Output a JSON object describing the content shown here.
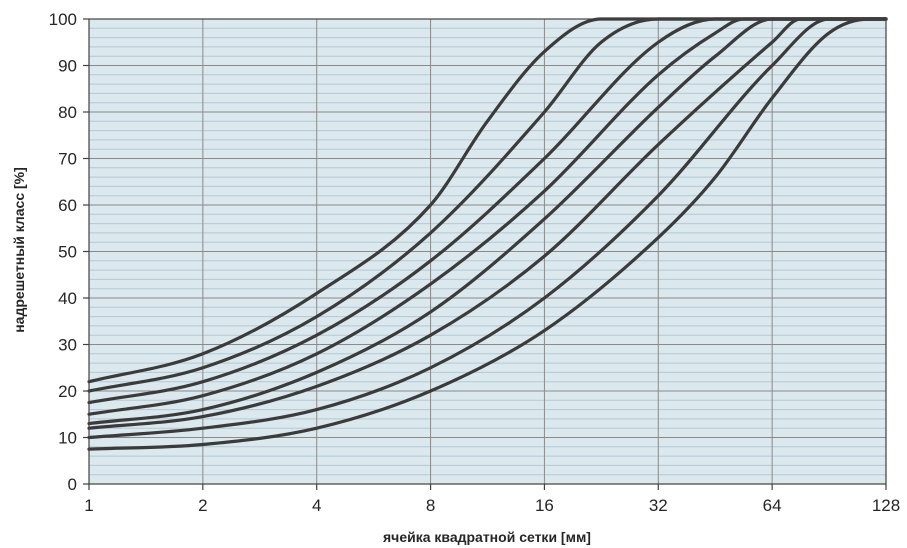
{
  "chart_data": {
    "type": "line",
    "title": "",
    "xlabel": "ячейка квадратной сетки [мм]",
    "ylabel": "надрешетный класс [%]",
    "x_scale": "log2",
    "xlim": [
      1,
      128
    ],
    "ylim": [
      0,
      100
    ],
    "x_ticks": [
      1,
      2,
      4,
      8,
      16,
      32,
      64,
      128
    ],
    "x_tick_labels": [
      "1",
      "2",
      "4",
      "8",
      "16",
      "32",
      "64",
      "128"
    ],
    "y_ticks": [
      0,
      10,
      20,
      30,
      40,
      50,
      60,
      70,
      80,
      90,
      100
    ],
    "y_tick_labels": [
      "0",
      "10",
      "20",
      "30",
      "40",
      "50",
      "60",
      "70",
      "80",
      "90",
      "100"
    ],
    "grid": true,
    "legend": "none",
    "colors": {
      "plot_background": "#dbe8ee",
      "minor_grid": "#b5c9d2",
      "major_grid": "#8a8a8a",
      "curve": "#3b3b3b",
      "axis": "#404040"
    },
    "series": [
      {
        "points": [
          [
            1,
            22
          ],
          [
            2,
            28
          ],
          [
            4,
            41
          ],
          [
            8,
            60
          ],
          [
            11.3,
            78
          ],
          [
            16,
            93
          ],
          [
            22.6,
            100
          ],
          [
            128,
            100
          ]
        ]
      },
      {
        "points": [
          [
            1,
            20
          ],
          [
            2,
            25
          ],
          [
            4,
            36
          ],
          [
            8,
            54
          ],
          [
            16,
            80
          ],
          [
            22.6,
            95
          ],
          [
            32,
            100
          ],
          [
            128,
            100
          ]
        ]
      },
      {
        "points": [
          [
            1,
            17.5
          ],
          [
            2,
            22
          ],
          [
            4,
            32
          ],
          [
            8,
            48
          ],
          [
            16,
            70
          ],
          [
            32,
            95
          ],
          [
            45.3,
            100
          ],
          [
            128,
            100
          ]
        ]
      },
      {
        "points": [
          [
            1,
            15
          ],
          [
            2,
            19
          ],
          [
            4,
            28
          ],
          [
            8,
            43
          ],
          [
            16,
            63
          ],
          [
            32,
            88
          ],
          [
            45.3,
            97
          ],
          [
            53.8,
            100
          ],
          [
            128,
            100
          ]
        ]
      },
      {
        "points": [
          [
            1,
            13
          ],
          [
            2,
            16
          ],
          [
            4,
            24
          ],
          [
            8,
            37
          ],
          [
            16,
            57
          ],
          [
            32,
            81
          ],
          [
            45.3,
            92
          ],
          [
            64,
            100
          ],
          [
            128,
            100
          ]
        ]
      },
      {
        "points": [
          [
            1,
            12
          ],
          [
            2,
            14.5
          ],
          [
            4,
            21
          ],
          [
            8,
            32
          ],
          [
            16,
            49
          ],
          [
            32,
            73
          ],
          [
            64,
            95
          ],
          [
            76.1,
            100
          ],
          [
            128,
            100
          ]
        ]
      },
      {
        "points": [
          [
            1,
            10
          ],
          [
            2,
            12
          ],
          [
            4,
            16
          ],
          [
            8,
            25
          ],
          [
            16,
            40
          ],
          [
            32,
            62
          ],
          [
            64,
            90
          ],
          [
            90.5,
            100
          ],
          [
            128,
            100
          ]
        ]
      },
      {
        "points": [
          [
            1,
            7.5
          ],
          [
            2,
            8.5
          ],
          [
            4,
            12
          ],
          [
            8,
            20
          ],
          [
            16,
            33
          ],
          [
            32,
            53
          ],
          [
            45.3,
            66
          ],
          [
            64,
            83
          ],
          [
            90.5,
            97
          ],
          [
            116,
            100
          ],
          [
            128,
            100
          ]
        ]
      }
    ]
  }
}
